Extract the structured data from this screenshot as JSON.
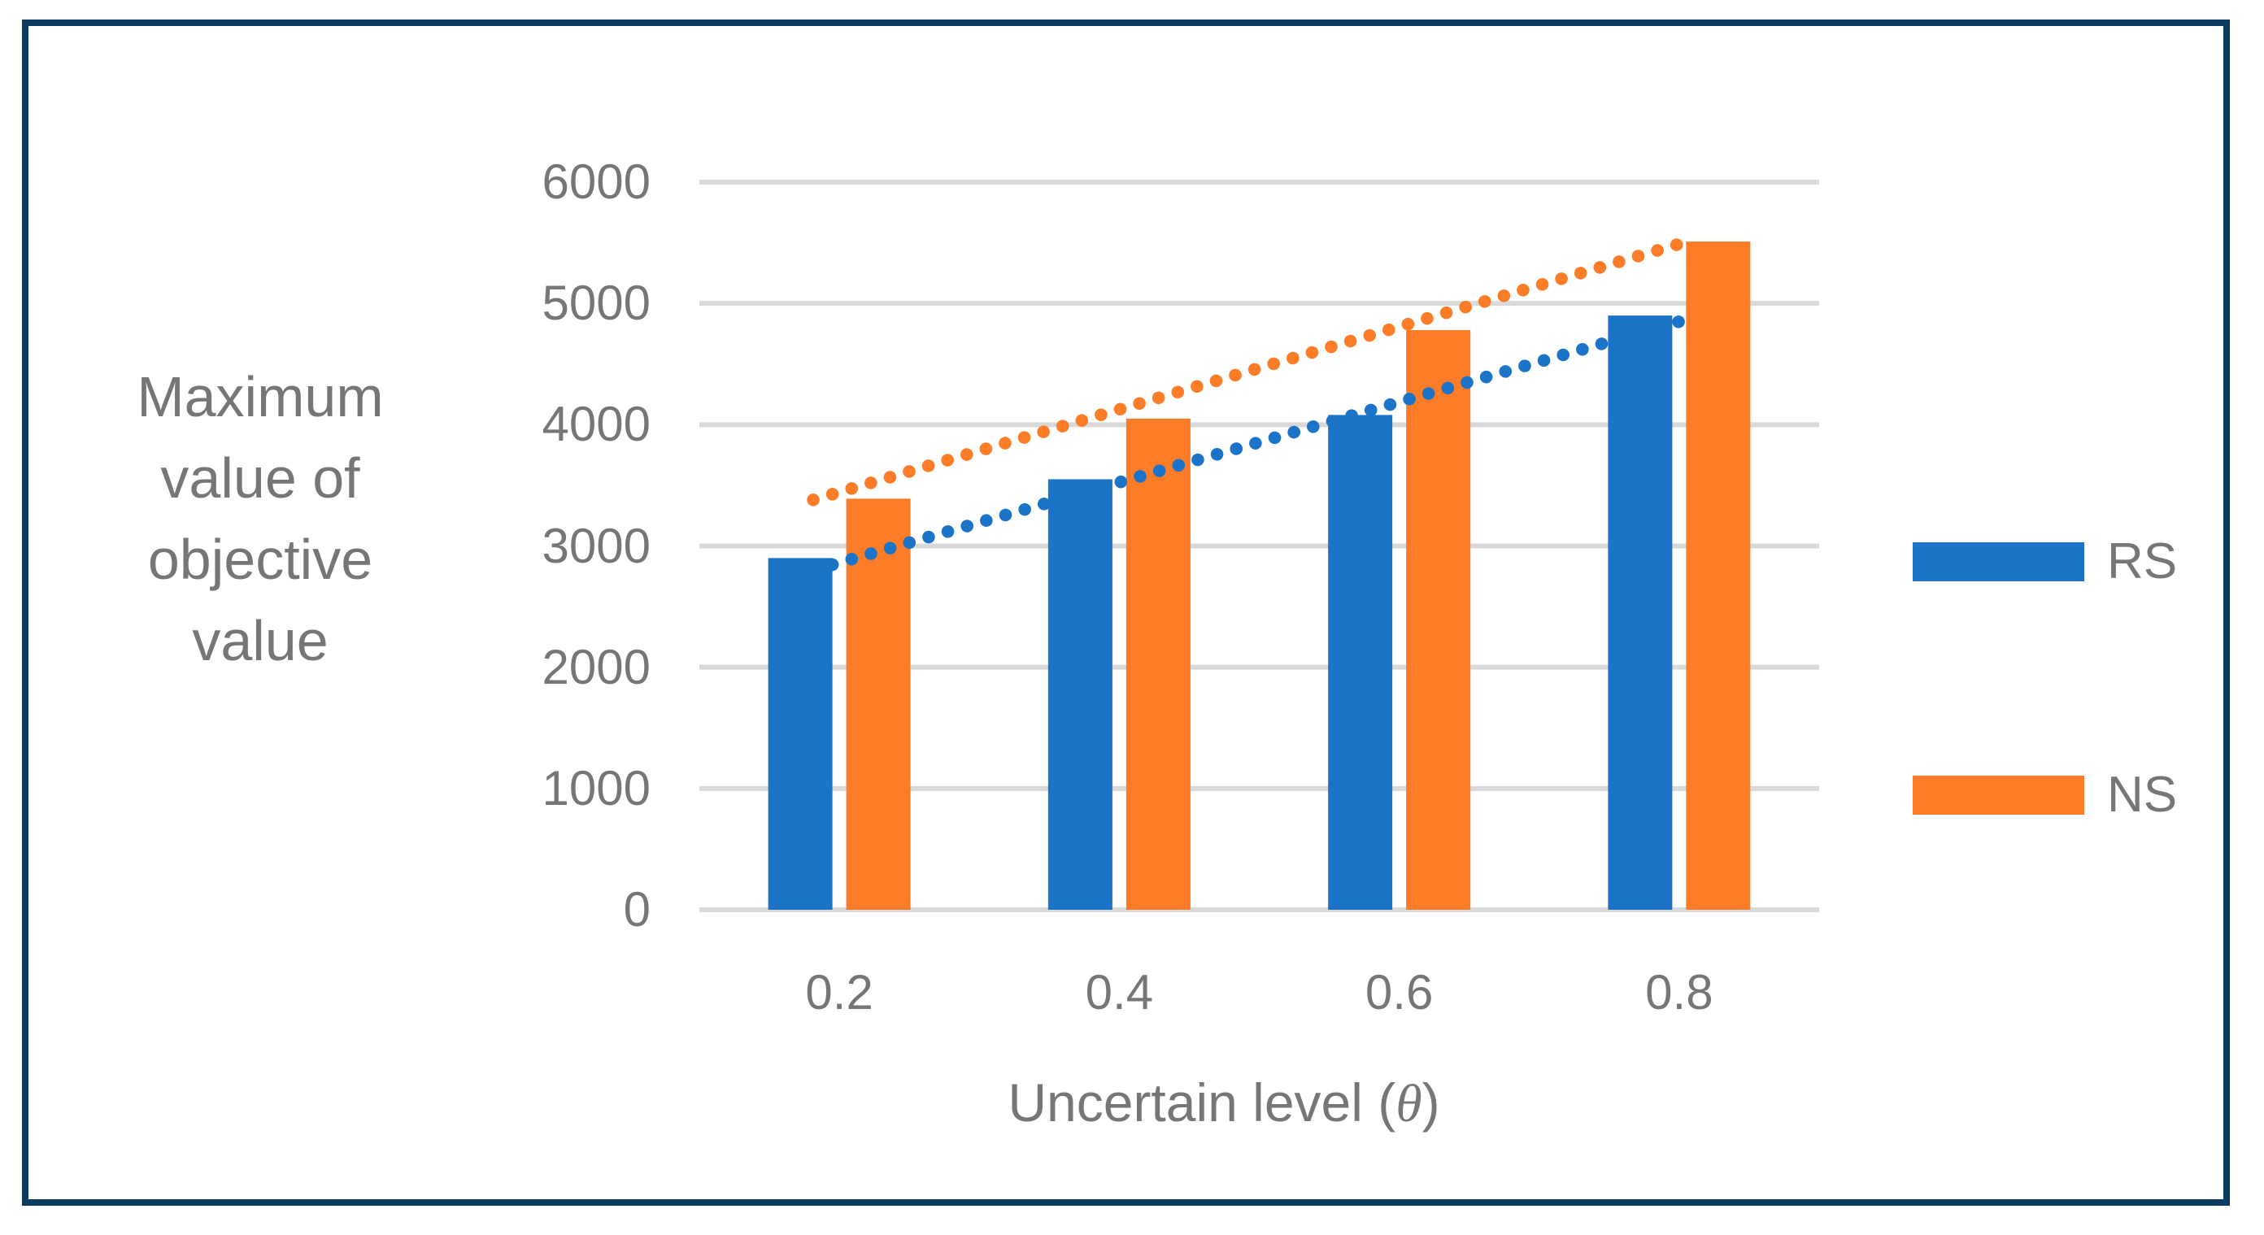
{
  "chart_data": {
    "type": "bar",
    "title": "",
    "categories": [
      "0.2",
      "0.4",
      "0.6",
      "0.8"
    ],
    "series": [
      {
        "name": "RS",
        "color": "#1B74C8",
        "values": [
          2900,
          3550,
          4080,
          4900
        ]
      },
      {
        "name": "NS",
        "color": "#FC7C27",
        "values": [
          3390,
          4050,
          4780,
          5510
        ]
      }
    ],
    "trendlines": [
      {
        "series": "RS",
        "style": "dotted",
        "color": "#1B74C8",
        "start_value": 2800,
        "end_value": 4850
      },
      {
        "series": "NS",
        "style": "dotted",
        "color": "#FC7C27",
        "start_value": 3380,
        "end_value": 5490
      }
    ],
    "xlabel": "Uncertain level (θ)",
    "xlabel_prefix": "Uncertain level (",
    "xlabel_theta": "θ",
    "xlabel_suffix": ")",
    "ylabel": "Maximum value of objective value",
    "ylabel_lines": [
      "Maximum",
      "value of",
      "objective",
      "value"
    ],
    "yticks": [
      0,
      1000,
      2000,
      3000,
      4000,
      5000,
      6000
    ],
    "ylim": [
      0,
      6000
    ],
    "grid": "horizontal",
    "gridline_color": "#D9D9D9",
    "text_color": "#767676",
    "frame_color": "#0B3B5E",
    "legend_position": "right",
    "legend": [
      {
        "label": "RS",
        "color": "#1B74C8"
      },
      {
        "label": "NS",
        "color": "#FC7C27"
      }
    ]
  }
}
